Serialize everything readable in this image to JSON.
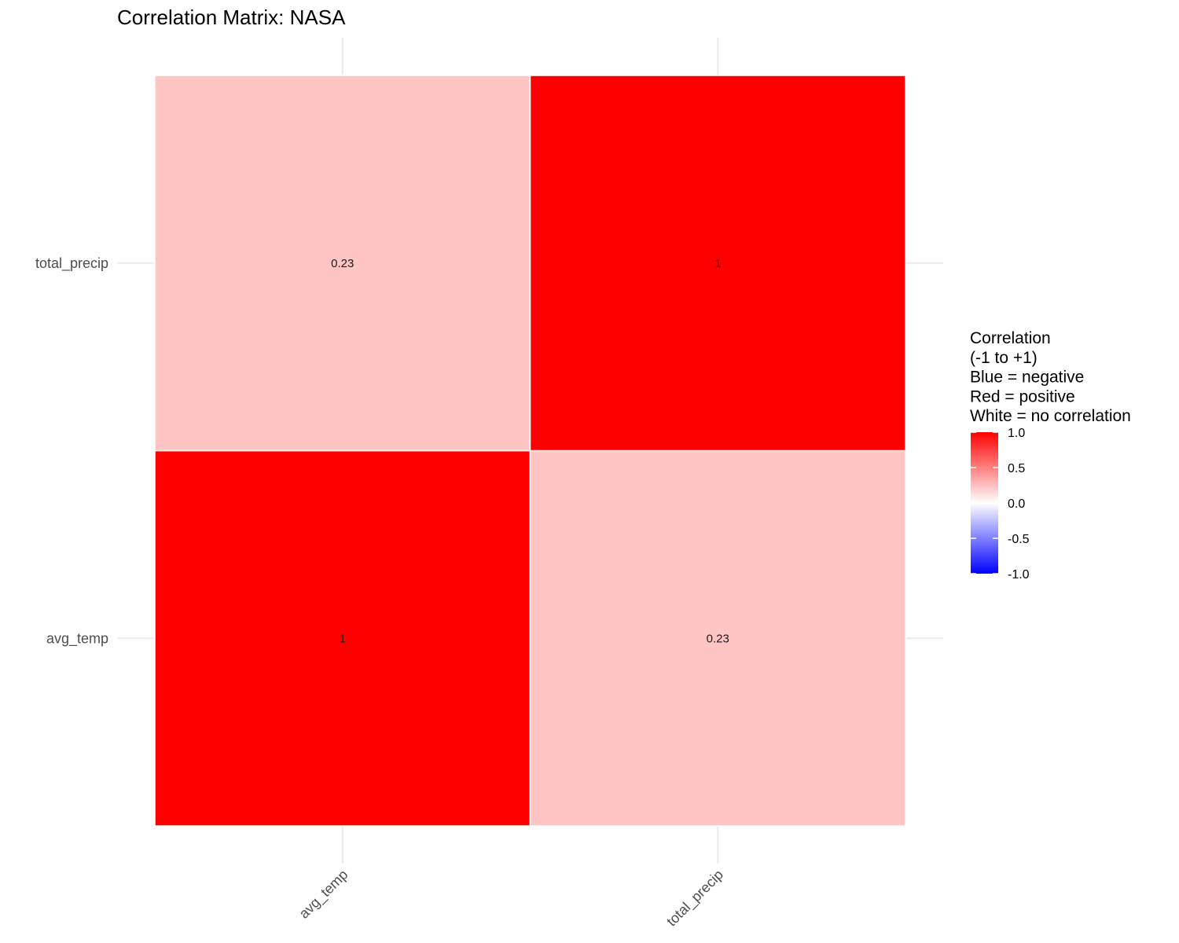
{
  "chart_data": {
    "type": "heatmap",
    "title": "Correlation Matrix: NASA",
    "x_categories": [
      "avg_temp",
      "total_precip"
    ],
    "y_categories": [
      "avg_temp",
      "total_precip"
    ],
    "values": [
      {
        "x": "avg_temp",
        "y": "avg_temp",
        "value": 1,
        "label": "1"
      },
      {
        "x": "total_precip",
        "y": "avg_temp",
        "value": 0.23,
        "label": "0.23"
      },
      {
        "x": "avg_temp",
        "y": "total_precip",
        "value": 0.23,
        "label": "0.23"
      },
      {
        "x": "total_precip",
        "y": "total_precip",
        "value": 1,
        "label": "1"
      }
    ],
    "legend": {
      "title_lines": [
        "Correlation",
        "(-1 to +1)",
        "Blue = negative",
        "Red = positive",
        "White = no correlation"
      ],
      "position": "right",
      "range": [
        -1,
        1
      ],
      "ticks": [
        {
          "value": 1,
          "label": "1.0"
        },
        {
          "value": 0.5,
          "label": "0.5"
        },
        {
          "value": 0,
          "label": "0.0"
        },
        {
          "value": -0.5,
          "label": "-0.5"
        },
        {
          "value": -1,
          "label": "-1.0"
        }
      ]
    },
    "colors": {
      "low": "#0000ff",
      "mid": "#ffffff",
      "high": "#ff0000"
    },
    "grid": true
  }
}
